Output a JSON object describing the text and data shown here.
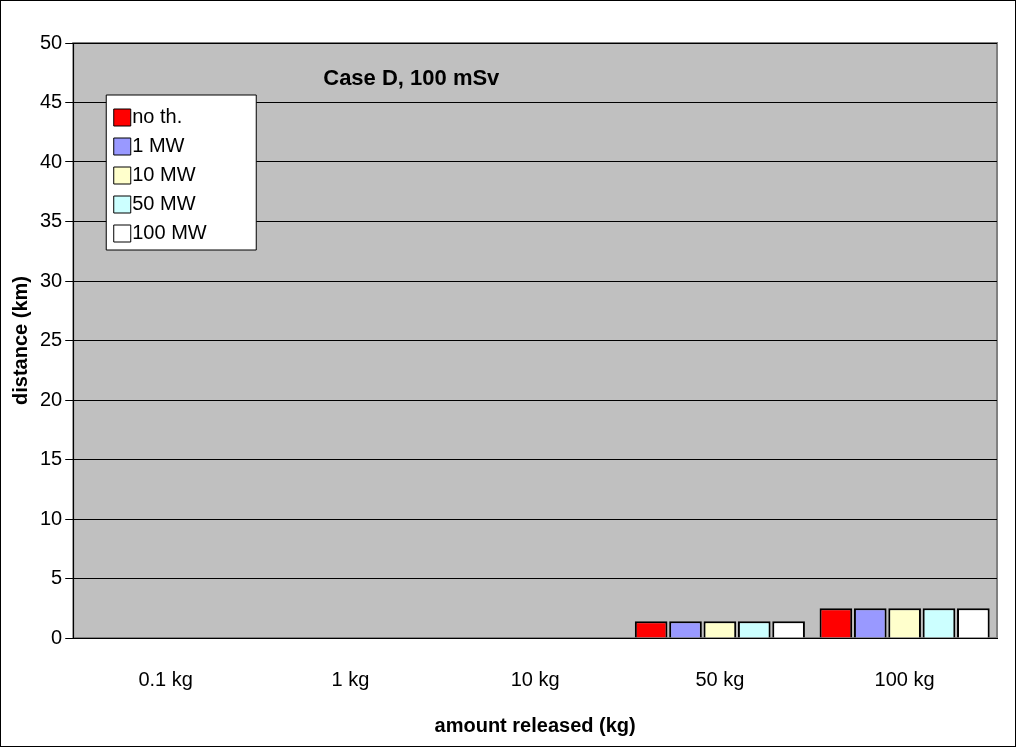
{
  "chart_data": {
    "type": "bar",
    "title": "Case D, 100 mSv",
    "xlabel": "amount released (kg)",
    "ylabel": "distance (km)",
    "categories": [
      "0.1 kg",
      "1 kg",
      "10 kg",
      "50 kg",
      "100 kg"
    ],
    "series": [
      {
        "name": "no th.",
        "color": "#ff0000",
        "values": [
          0,
          0,
          0,
          1.4,
          2.5
        ]
      },
      {
        "name": "1 MW",
        "color": "#9999ff",
        "values": [
          0,
          0,
          0,
          1.4,
          2.5
        ]
      },
      {
        "name": "10 MW",
        "color": "#ffffcc",
        "values": [
          0,
          0,
          0,
          1.4,
          2.5
        ]
      },
      {
        "name": "50 MW",
        "color": "#ccffff",
        "values": [
          0,
          0,
          0,
          1.4,
          2.5
        ]
      },
      {
        "name": "100 MW",
        "color": "#ffffff",
        "values": [
          0,
          0,
          0,
          1.4,
          2.5
        ]
      }
    ],
    "ylim": [
      0,
      50
    ],
    "yticks": [
      0,
      5,
      10,
      15,
      20,
      25,
      30,
      35,
      40,
      45,
      50
    ],
    "grid": "y",
    "legend": "top left"
  }
}
